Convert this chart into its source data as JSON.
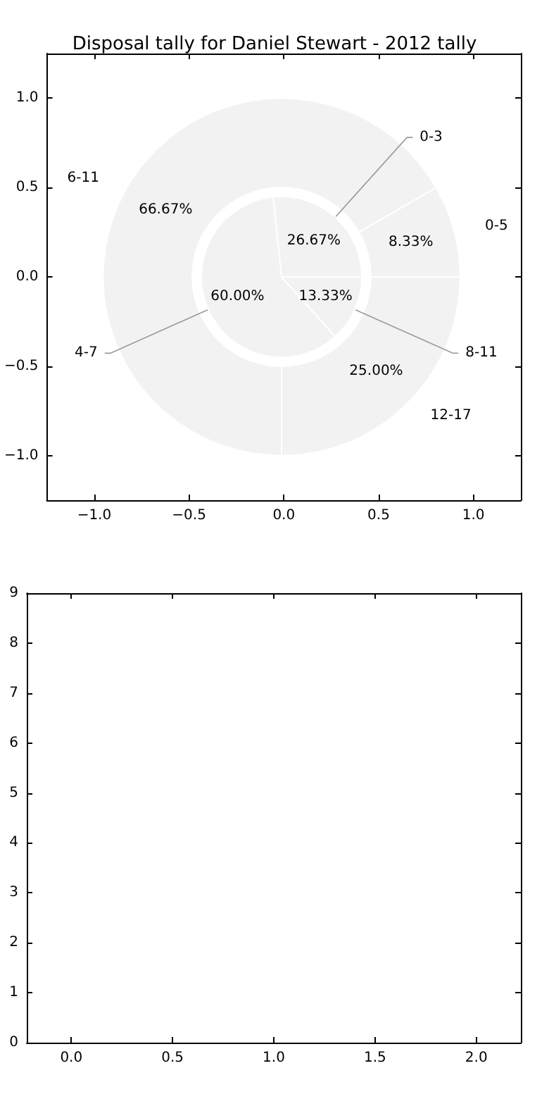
{
  "chart_data": [
    {
      "type": "scatter",
      "title": "Disposal tally for Daniel Stewart - 2012 tally",
      "xlim": [
        -1.25,
        1.25
      ],
      "ylim": [
        -1.25,
        1.25
      ],
      "xticks": [
        {
          "value": -1,
          "label": "−1.0"
        },
        {
          "value": -0.5,
          "label": "−0.5"
        },
        {
          "value": 0,
          "label": "0.0"
        },
        {
          "value": 0.5,
          "label": "0.5"
        },
        {
          "value": 1,
          "label": "1.0"
        }
      ],
      "yticks": [
        {
          "value": -1,
          "label": "−1.0"
        },
        {
          "value": -0.5,
          "label": "−0.5"
        },
        {
          "value": 0,
          "label": "0.0"
        },
        {
          "value": 0.5,
          "label": "0.5"
        },
        {
          "value": 1,
          "label": "1.0"
        }
      ],
      "grid": false
    },
    {
      "type": "donut",
      "categories": [
        "0-5",
        "6-11",
        "12-17"
      ],
      "values": [
        8.33,
        66.67,
        25.0
      ],
      "value_labels": [
        "8.33%",
        "66.67%",
        "25.00%"
      ],
      "colors": [
        "#f2f2f2",
        "#f2f2f2",
        "#f2f2f2"
      ]
    },
    {
      "type": "pie",
      "categories": [
        "0-3",
        "4-7",
        "8-11"
      ],
      "values": [
        26.67,
        60.0,
        13.33
      ],
      "value_labels": [
        "26.67%",
        "60.00%",
        "13.33%"
      ],
      "colors": [
        "#f2f2f2",
        "#f2f2f2",
        "#f2f2f2"
      ]
    },
    {
      "type": "scatter",
      "xlim": [
        -0.22,
        2.22
      ],
      "ylim": [
        0,
        9
      ],
      "xticks": [
        {
          "value": 0,
          "label": "0.0"
        },
        {
          "value": 0.5,
          "label": "0.5"
        },
        {
          "value": 1,
          "label": "1.0"
        },
        {
          "value": 1.5,
          "label": "1.5"
        },
        {
          "value": 2,
          "label": "2.0"
        }
      ],
      "yticks": [
        0,
        1,
        2,
        3,
        4,
        5,
        6,
        7,
        8,
        9
      ],
      "grid": false
    }
  ]
}
